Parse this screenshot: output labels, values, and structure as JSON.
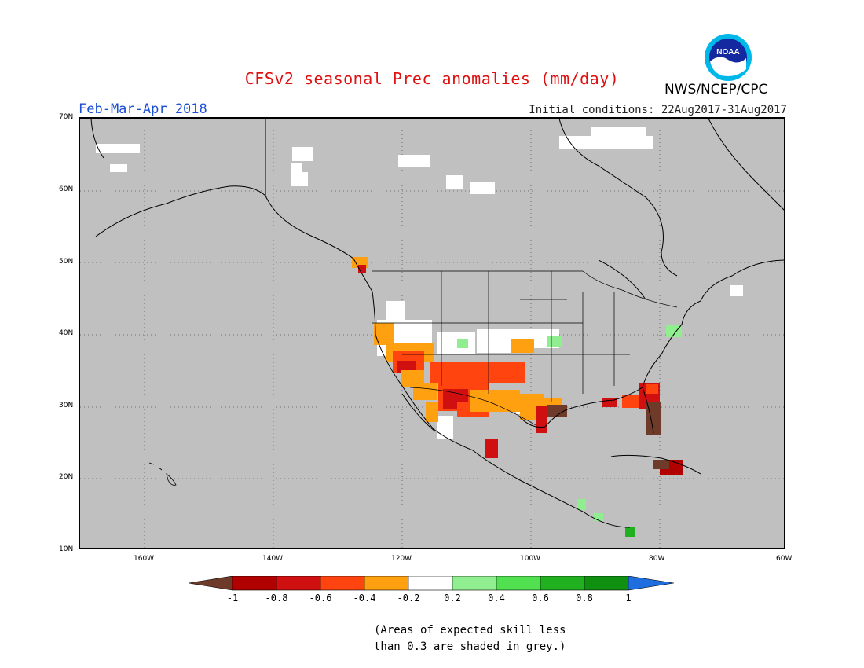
{
  "header": {
    "title": "CFSv2 seasonal Prec anomalies (mm/day)",
    "period": "Feb-Mar-Apr 2018",
    "initial_conditions": "Initial conditions: 22Aug2017-31Aug2017",
    "org": "NWS/NCEP/CPC",
    "logo_text": "NOAA"
  },
  "map": {
    "region": "North America",
    "lon_range": [
      "170W",
      "60W"
    ],
    "lat_range": [
      "10N",
      "70N"
    ],
    "lat_labels": [
      "70N",
      "60N",
      "50N",
      "40N",
      "30N",
      "20N",
      "10N"
    ],
    "lon_labels": [
      "160W",
      "140W",
      "120W",
      "100W",
      "80W",
      "60W"
    ],
    "background_color": "#c0c0c0",
    "gridlines": "dotted"
  },
  "colorbar": {
    "ticks": [
      "-1",
      "-0.8",
      "-0.6",
      "-0.4",
      "-0.2",
      "0.2",
      "0.4",
      "0.6",
      "0.8",
      "1"
    ],
    "colors": [
      "#6e3a2a",
      "#b00000",
      "#d01010",
      "#ff4410",
      "#ffa010",
      "#ffffff",
      "#90ee90",
      "#50e050",
      "#20b020",
      "#109010",
      "#1e6ee0"
    ]
  },
  "note": {
    "line1": "(Areas of expected skill less",
    "line2": "than 0.3 are shaded in grey.)"
  }
}
